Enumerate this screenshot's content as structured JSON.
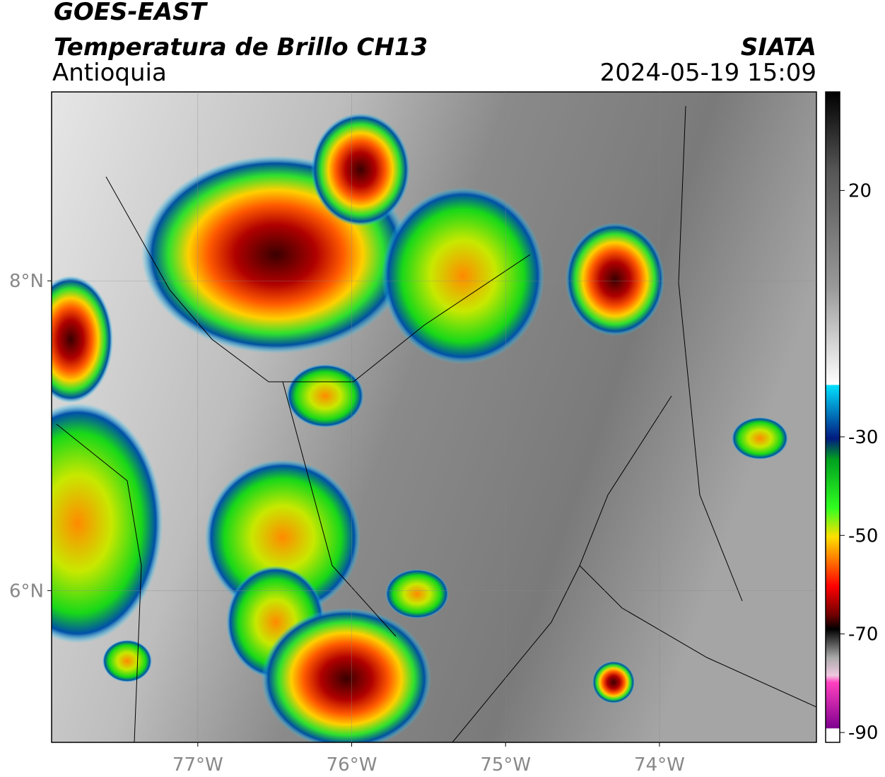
{
  "header": {
    "title": "GOES-EAST",
    "subtitle": "Temperatura de Brillo CH13",
    "region": "Antioquia",
    "source": "SIATA",
    "datetime": "2024-05-19 15:09"
  },
  "map": {
    "lonlim": [
      -77.95,
      -72.98
    ],
    "latlim": [
      5.02,
      9.22
    ],
    "lonticks": [
      {
        "value": -77,
        "label": "77°W"
      },
      {
        "value": -76,
        "label": "76°W"
      },
      {
        "value": -75,
        "label": "75°W"
      },
      {
        "value": -74,
        "label": "74°W"
      }
    ],
    "latticks": [
      {
        "value": 6,
        "label": "6°N"
      },
      {
        "value": 8,
        "label": "8°N"
      }
    ],
    "grid": true
  },
  "colorbar": {
    "lim": [
      -92,
      40
    ],
    "ticks": [
      20,
      -30,
      -50,
      -70,
      -90
    ]
  }
}
